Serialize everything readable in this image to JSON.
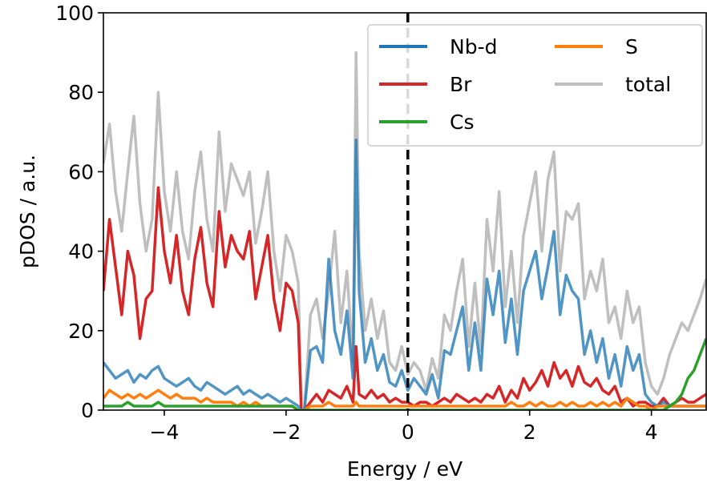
{
  "chart_data": {
    "type": "line",
    "title": "",
    "xlabel": "Energy / eV",
    "ylabel": "pDOS / a.u.",
    "xlim": [
      -5,
      4.9
    ],
    "ylim": [
      0,
      100
    ],
    "xticks": [
      -4,
      -2,
      0,
      2,
      4
    ],
    "yticks": [
      0,
      20,
      40,
      60,
      80,
      100
    ],
    "xtick_labels": [
      "−4",
      "−2",
      "0",
      "2",
      "4"
    ],
    "ytick_labels": [
      "0",
      "20",
      "40",
      "60",
      "80",
      "100"
    ],
    "grid": false,
    "legend_position": "top-right",
    "fermi_level_line": {
      "x": 0,
      "style": "dashed",
      "color": "#000000"
    },
    "series": [
      {
        "name": "total",
        "color": "#bfbfbf",
        "opacity": 1,
        "x": [
          -5.0,
          -4.9,
          -4.8,
          -4.7,
          -4.6,
          -4.5,
          -4.4,
          -4.3,
          -4.2,
          -4.1,
          -4.0,
          -3.9,
          -3.8,
          -3.7,
          -3.6,
          -3.5,
          -3.4,
          -3.3,
          -3.2,
          -3.1,
          -3.0,
          -2.9,
          -2.8,
          -2.7,
          -2.6,
          -2.5,
          -2.4,
          -2.3,
          -2.2,
          -2.1,
          -2.0,
          -1.9,
          -1.8,
          -1.75,
          -1.7,
          -1.6,
          -1.5,
          -1.4,
          -1.3,
          -1.2,
          -1.1,
          -1.0,
          -0.9,
          -0.85,
          -0.8,
          -0.7,
          -0.6,
          -0.5,
          -0.4,
          -0.3,
          -0.2,
          -0.1,
          0.0,
          0.1,
          0.2,
          0.3,
          0.4,
          0.5,
          0.6,
          0.7,
          0.8,
          0.9,
          1.0,
          1.1,
          1.2,
          1.3,
          1.4,
          1.5,
          1.6,
          1.7,
          1.8,
          1.9,
          2.0,
          2.1,
          2.2,
          2.3,
          2.4,
          2.5,
          2.6,
          2.7,
          2.8,
          2.9,
          3.0,
          3.1,
          3.2,
          3.3,
          3.4,
          3.5,
          3.6,
          3.7,
          3.8,
          3.9,
          4.0,
          4.1,
          4.2,
          4.3,
          4.4,
          4.5,
          4.6,
          4.7,
          4.8,
          4.9
        ],
        "y": [
          62,
          72,
          55,
          45,
          60,
          74,
          52,
          40,
          48,
          80,
          55,
          45,
          60,
          45,
          38,
          55,
          65,
          48,
          40,
          70,
          50,
          62,
          58,
          54,
          60,
          42,
          50,
          60,
          40,
          30,
          44,
          40,
          32,
          0,
          0,
          24,
          28,
          18,
          30,
          45,
          22,
          35,
          12,
          90,
          40,
          20,
          28,
          18,
          25,
          12,
          10,
          16,
          9,
          12,
          10,
          5,
          13,
          8,
          24,
          20,
          30,
          38,
          16,
          32,
          15,
          48,
          35,
          55,
          26,
          40,
          22,
          44,
          52,
          60,
          40,
          58,
          65,
          35,
          50,
          48,
          52,
          28,
          35,
          30,
          38,
          22,
          26,
          18,
          30,
          22,
          26,
          12,
          6,
          4,
          8,
          14,
          18,
          22,
          20,
          24,
          28,
          33
        ]
      },
      {
        "name": "Br",
        "color": "#d62728",
        "opacity": 1,
        "x": [
          -5.0,
          -4.9,
          -4.8,
          -4.7,
          -4.6,
          -4.5,
          -4.4,
          -4.3,
          -4.2,
          -4.1,
          -4.0,
          -3.9,
          -3.8,
          -3.7,
          -3.6,
          -3.5,
          -3.4,
          -3.3,
          -3.2,
          -3.1,
          -3.0,
          -2.9,
          -2.8,
          -2.7,
          -2.6,
          -2.5,
          -2.4,
          -2.3,
          -2.2,
          -2.1,
          -2.0,
          -1.9,
          -1.8,
          -1.75,
          -1.7,
          -1.6,
          -1.5,
          -1.4,
          -1.3,
          -1.2,
          -1.1,
          -1.0,
          -0.9,
          -0.85,
          -0.8,
          -0.7,
          -0.6,
          -0.5,
          -0.4,
          -0.3,
          -0.2,
          -0.1,
          0.0,
          0.1,
          0.2,
          0.3,
          0.4,
          0.5,
          0.6,
          0.7,
          0.8,
          0.9,
          1.0,
          1.1,
          1.2,
          1.3,
          1.4,
          1.5,
          1.6,
          1.7,
          1.8,
          1.9,
          2.0,
          2.1,
          2.2,
          2.3,
          2.4,
          2.5,
          2.6,
          2.7,
          2.8,
          2.9,
          3.0,
          3.1,
          3.2,
          3.3,
          3.4,
          3.5,
          3.6,
          3.7,
          3.8,
          3.9,
          4.0,
          4.1,
          4.2,
          4.3,
          4.4,
          4.5,
          4.6,
          4.7,
          4.8,
          4.9
        ],
        "y": [
          30,
          48,
          36,
          24,
          40,
          34,
          18,
          28,
          30,
          56,
          40,
          32,
          44,
          30,
          24,
          38,
          46,
          32,
          26,
          50,
          36,
          44,
          40,
          38,
          45,
          28,
          36,
          44,
          28,
          20,
          32,
          30,
          22,
          0,
          0,
          2,
          4,
          2,
          5,
          4,
          3,
          6,
          2,
          16,
          4,
          3,
          5,
          3,
          4,
          2,
          3,
          2,
          2,
          1,
          2,
          2,
          1,
          2,
          3,
          2,
          4,
          3,
          2,
          3,
          2,
          4,
          3,
          6,
          2,
          5,
          3,
          8,
          5,
          7,
          10,
          6,
          12,
          8,
          10,
          6,
          11,
          7,
          6,
          8,
          5,
          4,
          6,
          2,
          3,
          1,
          2,
          2,
          1,
          1,
          3,
          1,
          2,
          3,
          2,
          2,
          3,
          4
        ]
      },
      {
        "name": "Nb-d",
        "color": "#1f77b4",
        "opacity": 0.78,
        "x": [
          -5.0,
          -4.9,
          -4.8,
          -4.7,
          -4.6,
          -4.5,
          -4.4,
          -4.3,
          -4.2,
          -4.1,
          -4.0,
          -3.9,
          -3.8,
          -3.7,
          -3.6,
          -3.5,
          -3.4,
          -3.3,
          -3.2,
          -3.1,
          -3.0,
          -2.9,
          -2.8,
          -2.7,
          -2.6,
          -2.5,
          -2.4,
          -2.3,
          -2.2,
          -2.1,
          -2.0,
          -1.9,
          -1.8,
          -1.75,
          -1.7,
          -1.6,
          -1.5,
          -1.4,
          -1.3,
          -1.2,
          -1.1,
          -1.0,
          -0.9,
          -0.85,
          -0.8,
          -0.7,
          -0.6,
          -0.5,
          -0.4,
          -0.3,
          -0.2,
          -0.1,
          0.0,
          0.1,
          0.2,
          0.3,
          0.4,
          0.5,
          0.6,
          0.7,
          0.8,
          0.9,
          1.0,
          1.1,
          1.2,
          1.3,
          1.4,
          1.5,
          1.6,
          1.7,
          1.8,
          1.9,
          2.0,
          2.1,
          2.2,
          2.3,
          2.4,
          2.5,
          2.6,
          2.7,
          2.8,
          2.9,
          3.0,
          3.1,
          3.2,
          3.3,
          3.4,
          3.5,
          3.6,
          3.7,
          3.8,
          3.9,
          4.0,
          4.1,
          4.2,
          4.3,
          4.4,
          4.5,
          4.6,
          4.7,
          4.8,
          4.9
        ],
        "y": [
          12,
          10,
          8,
          9,
          10,
          7,
          9,
          8,
          10,
          11,
          8,
          7,
          6,
          7,
          8,
          6,
          5,
          7,
          6,
          5,
          4,
          5,
          6,
          4,
          5,
          4,
          3,
          4,
          3,
          2,
          3,
          2,
          1,
          0,
          0,
          15,
          16,
          12,
          38,
          20,
          14,
          25,
          8,
          68,
          30,
          12,
          18,
          10,
          14,
          7,
          6,
          10,
          5,
          8,
          6,
          4,
          9,
          3,
          15,
          14,
          20,
          26,
          10,
          22,
          10,
          33,
          24,
          35,
          17,
          28,
          14,
          30,
          35,
          40,
          28,
          36,
          45,
          24,
          34,
          30,
          28,
          14,
          20,
          12,
          18,
          8,
          14,
          6,
          16,
          10,
          14,
          4,
          2,
          1,
          2,
          1,
          1,
          1,
          1,
          1,
          1,
          1
        ]
      },
      {
        "name": "S",
        "color": "#ff7f0e",
        "opacity": 1,
        "x": [
          -5.0,
          -4.9,
          -4.8,
          -4.7,
          -4.6,
          -4.5,
          -4.4,
          -4.3,
          -4.2,
          -4.1,
          -4.0,
          -3.9,
          -3.8,
          -3.7,
          -3.6,
          -3.5,
          -3.4,
          -3.3,
          -3.2,
          -3.1,
          -3.0,
          -2.9,
          -2.8,
          -2.7,
          -2.6,
          -2.5,
          -2.4,
          -2.3,
          -2.2,
          -2.1,
          -2.0,
          -1.9,
          -1.8,
          -1.75,
          -1.7,
          -1.6,
          -1.5,
          -1.4,
          -1.3,
          -1.2,
          -1.1,
          -1.0,
          -0.9,
          -0.85,
          -0.8,
          -0.7,
          -0.6,
          -0.5,
          -0.4,
          -0.3,
          -0.2,
          -0.1,
          0.0,
          0.1,
          0.2,
          0.3,
          0.4,
          0.5,
          0.6,
          0.7,
          0.8,
          0.9,
          1.0,
          1.1,
          1.2,
          1.3,
          1.4,
          1.5,
          1.6,
          1.7,
          1.8,
          1.9,
          2.0,
          2.1,
          2.2,
          2.3,
          2.4,
          2.5,
          2.6,
          2.7,
          2.8,
          2.9,
          3.0,
          3.1,
          3.2,
          3.3,
          3.4,
          3.5,
          3.6,
          3.7,
          3.8,
          3.9,
          4.0,
          4.1,
          4.2,
          4.3,
          4.4,
          4.5,
          4.6,
          4.7,
          4.8,
          4.9
        ],
        "y": [
          3,
          5,
          4,
          3,
          4,
          3,
          4,
          3,
          4,
          5,
          4,
          3,
          4,
          3,
          3,
          3,
          2,
          3,
          2,
          2,
          2,
          2,
          1,
          2,
          1,
          2,
          1,
          1,
          1,
          1,
          1,
          1,
          0,
          0,
          0,
          1,
          1,
          1,
          2,
          1,
          1,
          1,
          1,
          2,
          1,
          1,
          1,
          1,
          1,
          1,
          1,
          1,
          1,
          1,
          1,
          1,
          1,
          1,
          1,
          1,
          1,
          1,
          1,
          1,
          1,
          1,
          1,
          1,
          1,
          2,
          1,
          1,
          2,
          1,
          2,
          1,
          1,
          2,
          1,
          2,
          1,
          1,
          2,
          1,
          2,
          1,
          2,
          1,
          3,
          2,
          1,
          1,
          0,
          1,
          1,
          1,
          1,
          1,
          1,
          1,
          1,
          1
        ]
      },
      {
        "name": "Cs",
        "color": "#2ca02c",
        "opacity": 1,
        "x": [
          -5.0,
          -4.9,
          -4.8,
          -4.7,
          -4.6,
          -4.5,
          -4.4,
          -4.3,
          -4.2,
          -4.1,
          -4.0,
          -3.9,
          -3.8,
          -3.7,
          -3.6,
          -3.5,
          -3.4,
          -3.3,
          -3.2,
          -3.1,
          -3.0,
          -2.9,
          -2.8,
          -2.7,
          -2.6,
          -2.5,
          -2.4,
          -2.3,
          -2.2,
          -2.1,
          -2.0,
          -1.9,
          -1.8,
          -1.75,
          -1.7,
          -1.6,
          -1.5,
          -1.4,
          -1.3,
          -1.2,
          -1.1,
          -1.0,
          -0.9,
          -0.85,
          -0.8,
          -0.7,
          -0.6,
          -0.5,
          -0.4,
          -0.3,
          -0.2,
          -0.1,
          0.0,
          0.1,
          0.2,
          0.3,
          0.4,
          0.5,
          0.6,
          0.7,
          0.8,
          0.9,
          1.0,
          1.1,
          1.2,
          1.3,
          1.4,
          1.5,
          1.6,
          1.7,
          1.8,
          1.9,
          2.0,
          2.1,
          2.2,
          2.3,
          2.4,
          2.5,
          2.6,
          2.7,
          2.8,
          2.9,
          3.0,
          3.1,
          3.2,
          3.3,
          3.4,
          3.5,
          3.6,
          3.7,
          3.8,
          3.9,
          4.0,
          4.1,
          4.2,
          4.3,
          4.4,
          4.5,
          4.6,
          4.7,
          4.8,
          4.9
        ],
        "y": [
          1,
          1,
          1,
          1,
          2,
          1,
          1,
          1,
          1,
          2,
          1,
          1,
          1,
          1,
          1,
          1,
          1,
          1,
          1,
          1,
          1,
          1,
          1,
          1,
          1,
          1,
          1,
          1,
          1,
          1,
          1,
          1,
          0,
          0,
          0,
          0,
          0,
          0,
          0,
          0,
          0,
          0,
          0,
          0,
          0,
          0,
          0,
          0,
          0,
          0,
          0,
          0,
          0,
          0,
          0,
          0,
          0,
          0,
          0,
          0,
          0,
          0,
          0,
          0,
          0,
          0,
          0,
          0,
          0,
          0,
          0,
          0,
          0,
          0,
          0,
          0,
          0,
          0,
          0,
          0,
          0,
          0,
          0,
          0,
          0,
          0,
          0,
          0,
          0,
          0,
          0,
          0,
          0,
          0,
          0,
          1,
          2,
          4,
          8,
          10,
          14,
          18
        ]
      }
    ],
    "legend": [
      {
        "name": "Nb-d",
        "color": "#1f77b4"
      },
      {
        "name": "Br",
        "color": "#d62728"
      },
      {
        "name": "Cs",
        "color": "#2ca02c"
      },
      {
        "name": "S",
        "color": "#ff7f0e"
      },
      {
        "name": "total",
        "color": "#bfbfbf"
      }
    ]
  }
}
